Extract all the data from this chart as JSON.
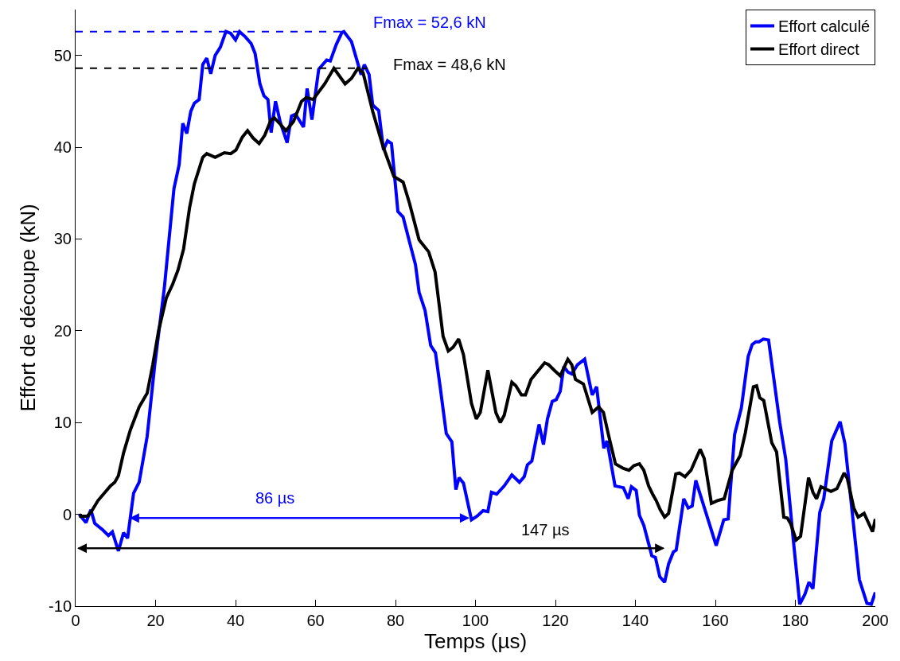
{
  "chart_data": {
    "type": "line",
    "xlabel": "Temps (µs)",
    "ylabel": "Effort de découpe (kN)",
    "xlim": [
      0,
      200
    ],
    "xticks": [
      0,
      20,
      40,
      60,
      80,
      100,
      120,
      140,
      160,
      180,
      200
    ],
    "ylim": [
      -10,
      55
    ],
    "yticks": [
      -10,
      0,
      10,
      20,
      30,
      40,
      50
    ],
    "legend": "top right",
    "marker": "none",
    "series": [
      {
        "name": "Effort calculé",
        "color": "#0000ff",
        "line_style": "solid",
        "x": [
          0.9,
          2.6,
          3.8,
          4.8,
          6.8,
          8.2,
          9.2,
          10.7,
          12,
          13,
          14.5,
          15.9,
          17.9,
          19.8,
          22.2,
          24.6,
          25.9,
          26.8,
          27.8,
          28.8,
          29.7,
          30.9,
          31.8,
          32.8,
          33.8,
          34.9,
          36.2,
          37.6,
          38.8,
          40,
          41,
          42.5,
          43.9,
          44.9,
          46.1,
          47.1,
          48.1,
          48.9,
          50,
          51.2,
          52.9,
          54,
          55,
          57,
          57.9,
          59.1,
          60.8,
          62.8,
          63.7,
          65.2,
          66.6,
          67.1,
          69,
          71.4,
          72.2,
          73.4,
          74.3,
          75.8,
          77,
          78,
          79,
          80.6,
          81.9,
          83.5,
          85,
          85.9,
          87.4,
          88.8,
          90,
          91.2,
          92.7,
          94.1,
          95.1,
          95.9,
          97,
          99,
          100.4,
          101.9,
          103.1,
          104,
          105.3,
          107.2,
          109.1,
          111,
          112.2,
          113,
          114.1,
          115.9,
          117,
          118,
          119.2,
          120.2,
          121.2,
          122.1,
          123.1,
          124.1,
          125.5,
          127.3,
          128.6,
          129.2,
          130.3,
          132.1,
          132.9,
          134.9,
          137,
          138.2,
          139,
          140.2,
          141,
          142.1,
          144.1,
          145,
          146.1,
          147.3,
          148.3,
          149.5,
          150.2,
          152.1,
          153.2,
          154.2,
          155.1,
          160.2,
          162.1,
          163.2,
          164.8,
          166.5,
          168.2,
          169.2,
          170.1,
          170.9,
          172,
          173.3,
          176.1,
          177.6,
          179.4,
          181.1,
          182.4,
          183.4,
          184.4,
          186.1,
          187.1,
          189.1,
          191.2,
          192.4,
          196,
          197.9,
          199,
          200
        ],
        "values": [
          0,
          -0.9,
          0.5,
          -1,
          -1.7,
          -2.3,
          -1.9,
          -4,
          -2,
          -2.6,
          2.3,
          3.5,
          8.5,
          16.3,
          24.7,
          35.5,
          38.1,
          42.6,
          41.5,
          43.9,
          44.8,
          45.2,
          49,
          49.7,
          48,
          50,
          50.9,
          52.6,
          52.4,
          51.7,
          52.6,
          52,
          51.3,
          50.2,
          46.9,
          45.6,
          45.2,
          41.6,
          45,
          42.7,
          40.5,
          43.4,
          43.6,
          42.2,
          46.4,
          43,
          48.5,
          49.5,
          49.4,
          51.2,
          52.5,
          52.6,
          51.5,
          47.9,
          49,
          47.9,
          44.6,
          44,
          39.7,
          40.7,
          40.4,
          33,
          32.4,
          29.7,
          27.2,
          24.2,
          22.2,
          18.4,
          17.6,
          13.8,
          8.8,
          7.9,
          2.7,
          4,
          3.4,
          -0.6,
          -0.2,
          0.4,
          0.3,
          2.4,
          2.2,
          3.1,
          4.3,
          3.5,
          4.1,
          5.4,
          5.8,
          9.8,
          7.6,
          10.4,
          12.3,
          12.5,
          13.4,
          16.1,
          15.5,
          15.3,
          16.3,
          16.9,
          14.2,
          13,
          13.9,
          7.2,
          8,
          3.1,
          2.9,
          1.7,
          3,
          2.6,
          -0.1,
          -1.2,
          -4.5,
          -4.7,
          -6.8,
          -7.4,
          -5.4,
          -4.1,
          -3.9,
          1.7,
          0.7,
          0.9,
          3.7,
          -3.4,
          -0.6,
          -0.5,
          8.7,
          11.6,
          17.2,
          18.5,
          18.8,
          18.8,
          19.1,
          19,
          10,
          6,
          -2.4,
          -9.8,
          -8.7,
          -7.4,
          -8.1,
          0.2,
          1.7,
          8,
          10.1,
          7.7,
          -7.1,
          -9.7,
          -9.8,
          -8.5
        ]
      },
      {
        "name": "Effort direct",
        "color": "#000000",
        "line_style": "solid",
        "x": [
          0.9,
          2.9,
          3.8,
          5.6,
          8.7,
          9.8,
          10.7,
          12,
          13.7,
          15.9,
          17.9,
          19.3,
          20.8,
          22.7,
          24.3,
          25.6,
          27,
          28.5,
          29.7,
          31.8,
          32.8,
          34.9,
          37.2,
          38.8,
          40.1,
          41.7,
          43,
          44.4,
          45.9,
          47.3,
          48.8,
          49.7,
          51.2,
          52.6,
          54.5,
          56.5,
          57.7,
          59.4,
          62.3,
          64.6,
          67.4,
          69,
          70.6,
          71.9,
          74.3,
          76.8,
          79.6,
          81.9,
          83.5,
          85.9,
          88.3,
          89.9,
          91.9,
          93.2,
          94.4,
          95.8,
          97,
          99,
          100.2,
          101.2,
          103.1,
          105.1,
          106.2,
          107.2,
          109.1,
          110.1,
          111.5,
          112.5,
          113.9,
          115.4,
          117.3,
          118.3,
          119.7,
          121.2,
          123.1,
          124.1,
          125,
          127,
          129.2,
          130.8,
          132,
          133.3,
          135,
          137,
          138.4,
          139.6,
          141,
          142.1,
          143.3,
          144.3,
          145.2,
          146.2,
          147.3,
          148.3,
          150.1,
          151,
          152.4,
          153.9,
          156.2,
          157.2,
          159,
          160.5,
          162.2,
          164.2,
          166.2,
          167.5,
          169.5,
          170.3,
          171.1,
          172.1,
          174.1,
          175.3,
          177.1,
          178,
          178.8,
          180.2,
          181.3,
          183.3,
          184.4,
          185.3,
          186.4,
          188.9,
          190.4,
          192.2,
          193,
          194.6,
          195.7,
          197.2,
          199.3,
          200
        ],
        "values": [
          -0.2,
          -0.2,
          0.2,
          1.5,
          3.1,
          3.5,
          4.2,
          6.7,
          9.2,
          11.7,
          13.2,
          16.3,
          20.1,
          23.6,
          25.1,
          26.6,
          28.9,
          33.4,
          36,
          38.9,
          39.3,
          38.9,
          39.4,
          39.3,
          39.7,
          41.1,
          41.8,
          41,
          40.4,
          41.3,
          42.9,
          43.2,
          42.5,
          41.8,
          42.8,
          45,
          45.4,
          45.2,
          46.9,
          48.6,
          46.9,
          47.5,
          48.6,
          48.1,
          43.9,
          40.2,
          36.8,
          36.2,
          33.9,
          29.9,
          28.6,
          26.4,
          19.4,
          17.8,
          18.2,
          19.1,
          17.4,
          12.1,
          10.4,
          11.1,
          15.7,
          11.1,
          10,
          10.8,
          14.4,
          14,
          13,
          13,
          14.7,
          15.5,
          16.5,
          16.3,
          15.7,
          15.1,
          16.9,
          16.3,
          14.7,
          14.2,
          11.1,
          11.7,
          11.1,
          8.6,
          5.5,
          5,
          4.8,
          5.3,
          5.5,
          4.8,
          3.1,
          2.2,
          1.5,
          0.5,
          -0.3,
          0.1,
          4.4,
          4.5,
          4.1,
          4.8,
          7.1,
          6.1,
          1.2,
          1.5,
          1.7,
          4.8,
          6.4,
          8.9,
          13.9,
          14,
          12.7,
          12.4,
          7.8,
          6.8,
          -0.3,
          -0.4,
          -1,
          -2.8,
          -2.4,
          4,
          2.4,
          1.7,
          3,
          2.5,
          2.8,
          4.5,
          3.9,
          0.7,
          -0.3,
          0.1,
          -1.9,
          -0.5
        ]
      },
      {
        "color": "#0000ff",
        "line_style": "dashed",
        "x": [
          0,
          67
        ],
        "values": [
          52.6,
          52.6
        ]
      },
      {
        "color": "#000000",
        "line_style": "dashed",
        "x": [
          0,
          73
        ],
        "values": [
          48.6,
          48.6
        ]
      }
    ],
    "annotations": [
      "Fmax = 52,6 kN",
      "Fmax = 48,6 kN",
      "86 µs",
      "147 µs"
    ]
  }
}
